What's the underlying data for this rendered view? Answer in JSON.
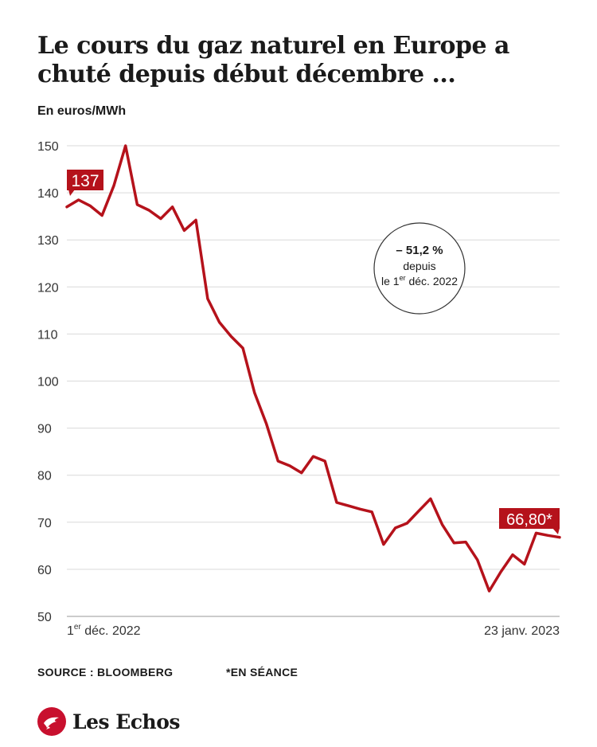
{
  "header": {
    "title": "Le cours du gaz naturel en Europe a chuté depuis  début décembre ...",
    "unit": "En euros/MWh"
  },
  "chart_data": {
    "type": "line",
    "ylim": [
      50,
      150
    ],
    "y_ticks": [
      "150",
      "140",
      "130",
      "120",
      "110",
      "100",
      "90",
      "80",
      "70",
      "60",
      "50"
    ],
    "x_start_label": {
      "prefix": "1",
      "sup": "er",
      "suffix": " déc. 2022"
    },
    "x_end_label": "23 janv. 2023",
    "grid": true,
    "series": [
      {
        "color": "#b5121b",
        "values": [
          137,
          138.5,
          137.2,
          135.2,
          141.5,
          150,
          137.5,
          136.3,
          134.5,
          137,
          132,
          134.2,
          117.5,
          112.5,
          109.5,
          107,
          97.5,
          91,
          83,
          82,
          80.5,
          84,
          83,
          74.2,
          73.5,
          72.8,
          72.2,
          65.3,
          68.8,
          69.8,
          72.4,
          75,
          69.5,
          65.6,
          65.8,
          62,
          55.4,
          59.5,
          63.1,
          61.1,
          67.7,
          67.2,
          66.8
        ]
      }
    ],
    "start_value_label": "137",
    "end_value_label": "66,80*",
    "annotation": {
      "value": "– 51,2 %",
      "line2": "depuis",
      "line3_prefix": "le 1",
      "line3_sup": "er",
      "line3_suffix": " déc. 2022"
    }
  },
  "footer": {
    "source": "SOURCE : BLOOMBERG",
    "note": "*EN SÉANCE"
  },
  "brand": {
    "name": "Les Echos",
    "color": "#c8102e",
    "icon": "les-echos-logo-icon"
  }
}
